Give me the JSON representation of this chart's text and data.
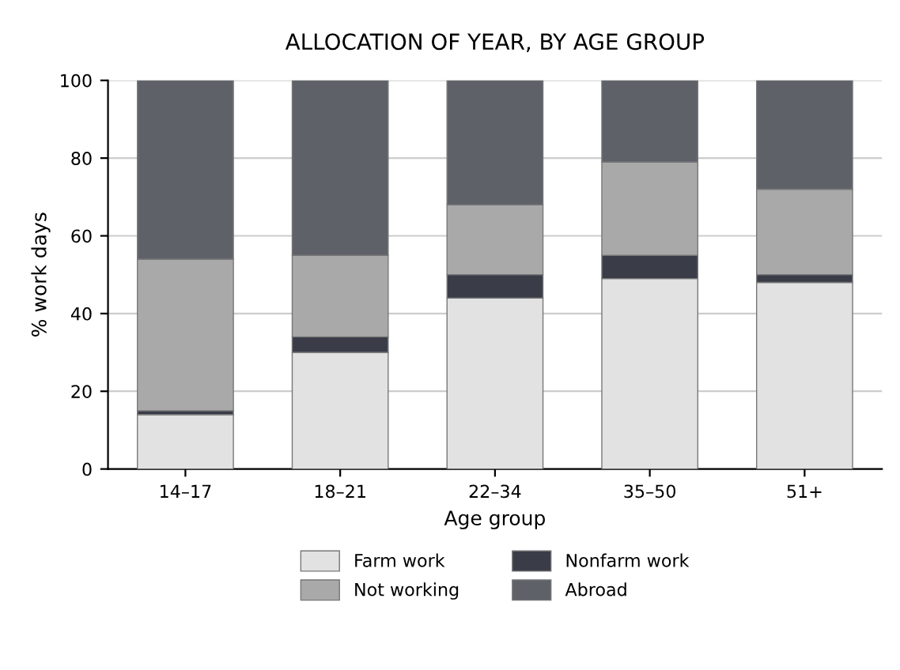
{
  "chart_data": {
    "type": "bar",
    "title": "ALLOCATION OF YEAR, BY AGE GROUP",
    "xlabel": "Age group",
    "ylabel": "% work days",
    "categories": [
      "14–17",
      "18–21",
      "22–34",
      "35–50",
      "51+"
    ],
    "stacked": true,
    "series": [
      {
        "name": "Farm work",
        "color": "#e2e2e2",
        "values": [
          14,
          30,
          44,
          49,
          48
        ]
      },
      {
        "name": "Nonfarm work",
        "color": "#3a3d48",
        "values": [
          1,
          4,
          6,
          6,
          2
        ]
      },
      {
        "name": "Not working",
        "color": "#a9a9a9",
        "values": [
          39,
          21,
          18,
          24,
          22
        ]
      },
      {
        "name": "Abroad",
        "color": "#5f6169",
        "values": [
          46,
          45,
          32,
          21,
          28
        ]
      }
    ],
    "ylim": [
      0,
      100
    ],
    "yticks": [
      0,
      20,
      40,
      60,
      80,
      100
    ],
    "grid": "y",
    "legend": "bottom"
  }
}
